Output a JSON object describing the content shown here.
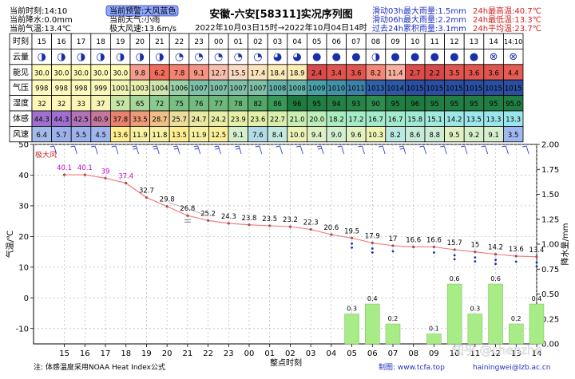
{
  "header": {
    "left": [
      "当前时刻:14:10",
      "当前降水:0.0mm",
      "当前气温:13.4℃"
    ],
    "warning": "当前预警:大风蓝色",
    "weather": "当前天气:小雨",
    "wind_max": "极大风速:13.6m/s",
    "title": "安徽-六安[58311]实况序列图",
    "time_range": "2022年10月03日15时→2022年10月04日14时",
    "rain_stats": [
      "滑动03h最大雨量:1.5mm",
      "滑动06h最大雨量:2.2mm",
      "过去24h累积雨量:3.1mm"
    ],
    "temp_stats": [
      "24h最高温:40.7℃",
      "24h最低温:13.3℃",
      "24h平均温:23.7℃"
    ]
  },
  "table": {
    "row_labels": [
      "时刻",
      "云量",
      "能见",
      "气压",
      "湿度",
      "体感",
      "风速"
    ],
    "hours": [
      "15",
      "16",
      "17",
      "18",
      "19",
      "20",
      "21",
      "22",
      "23",
      "00",
      "01",
      "02",
      "03",
      "04",
      "05",
      "06",
      "07",
      "08",
      "09",
      "10",
      "11",
      "12",
      "13",
      "14",
      "14:10"
    ],
    "cloud": [
      "◑",
      "◑",
      "◑",
      "◑",
      "◑",
      "◑",
      "◑",
      "◔",
      "◔",
      "◔",
      "◔",
      "◔",
      "◕",
      "◕",
      "●",
      "●",
      "●",
      "◑",
      "●",
      "●",
      "●",
      "●",
      "●",
      "⊗",
      "⊗"
    ],
    "visibility": [
      "30.0",
      "30.0",
      "30.0",
      "30.0",
      "30.0",
      "9.8",
      "6.2",
      "7.8",
      "9.1",
      "12.7",
      "15.5",
      "17.4",
      "18.4",
      "18.9",
      "2.4",
      "3.4",
      "3.6",
      "8.2",
      "11.4",
      "2.7",
      "2.2",
      "3.5",
      "3.6",
      "3.6",
      "4.4"
    ],
    "pressure": [
      "998",
      "998",
      "998",
      "999",
      "1001",
      "1003",
      "1004",
      "1006",
      "1007",
      "1007",
      "1007",
      "1007",
      "1008",
      "1008",
      "1009",
      "1010",
      "1011",
      "1013",
      "1014",
      "1015",
      "1015",
      "1015",
      "1015",
      "1015",
      "1015"
    ],
    "humidity": [
      "32",
      "32",
      "33",
      "37",
      "57",
      "65",
      "72",
      "75",
      "76",
      "77",
      "78",
      "82",
      "86",
      "96",
      "95",
      "94",
      "93",
      "90",
      "95",
      "96",
      "95",
      "95",
      "95",
      "95",
      "95.0"
    ],
    "feel": [
      "44.3",
      "44.3",
      "42.5",
      "40.9",
      "37.8",
      "33.5",
      "28.7",
      "25.7",
      "24.7",
      "24.2",
      "23.9",
      "23.6",
      "22.7",
      "21.0",
      "20.0",
      "18.2",
      "17.2",
      "16.7",
      "16.7",
      "15.8",
      "15.1",
      "14.2",
      "13.5",
      "13.3",
      "13.3"
    ],
    "wind": [
      "6.4",
      "5.7",
      "5.5",
      "4.5",
      "13.6",
      "11.9",
      "11.8",
      "13.5",
      "11.9",
      "12.5",
      "9.1",
      "7.6",
      "8.4",
      "10.0",
      "9.4",
      "9.0",
      "9.6",
      "10.3",
      "8.2",
      "8.6",
      "8.8",
      "9.5",
      "9.2",
      "9.1",
      "3.5"
    ]
  },
  "legend_label": "极大风",
  "footer": {
    "note": "注: 体感温度采用NOAA Heat Index公式",
    "xlabel": "整点时刻",
    "maker": "制图: www.tcfa.top",
    "email": "hainingwei@lzb.ac.cn",
    "watermark": "知乎 @chenzhe"
  },
  "colors": {
    "temp_line": "#f08080",
    "temp_label_hot": "#cc00cc",
    "rain_bar": "#a8ec88",
    "wind_barb": "#3344cc",
    "rain_marker": "#1a2fa8"
  },
  "chart_data": {
    "type": "bar",
    "categories": [
      "15",
      "16",
      "17",
      "18",
      "19",
      "20",
      "21",
      "22",
      "23",
      "00",
      "01",
      "02",
      "03",
      "04",
      "05",
      "06",
      "07",
      "08",
      "09",
      "10",
      "11",
      "12",
      "13",
      "14"
    ],
    "series": [
      {
        "name": "",
        "type": "line",
        "axis": "left",
        "values": [
          40.1,
          40.1,
          39.0,
          37.4,
          32.7,
          29.8,
          26.8,
          25.2,
          24.3,
          23.8,
          23.5,
          23.2,
          22.3,
          20.6,
          19.5,
          17.9,
          17.0,
          16.6,
          16.6,
          15.7,
          15.0,
          14.2,
          13.6,
          13.4
        ]
      },
      {
        "name": "",
        "type": "bar",
        "axis": "right",
        "values": [
          0,
          0,
          0,
          0,
          0,
          0,
          0,
          0,
          0,
          0,
          0,
          0,
          0,
          0,
          0.3,
          0.4,
          0.2,
          0,
          0.1,
          0.6,
          0.3,
          0.6,
          0.2,
          0.4
        ]
      }
    ],
    "ylabel": "气温/℃",
    "y2label": "降水量/mm",
    "ylim": [
      -15,
      50
    ],
    "y2lim": [
      0,
      2.0
    ],
    "yticks": [
      -10,
      0,
      10,
      20,
      30,
      40,
      50
    ],
    "y2ticks": [
      "0.00",
      "0.25",
      "0.50",
      "0.75",
      "1.00",
      "1.25",
      "1.50",
      "1.75",
      "2.00"
    ],
    "grid": true
  }
}
